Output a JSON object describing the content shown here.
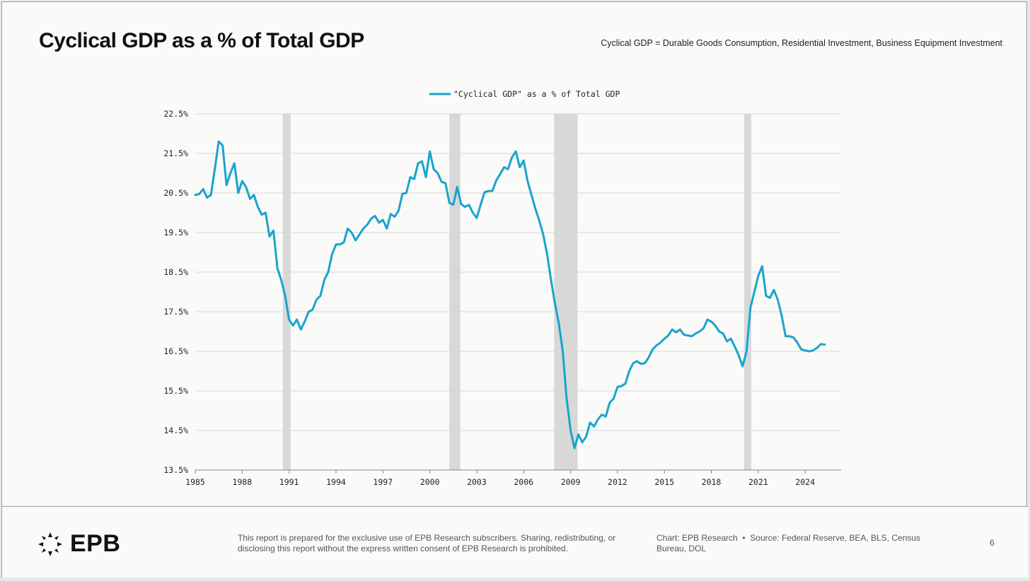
{
  "page": {
    "title": "Cyclical GDP as a % of Total GDP",
    "subtitle": "Cyclical GDP = Durable Goods Consumption, Residential Investment, Business Equipment Investment"
  },
  "footer": {
    "logo_text": "EPB",
    "disclaimer": "This report is prepared for the exclusive use of EPB Research subscribers. Sharing, redistributing, or disclosing this report without the express written consent of EPB Research is prohibited.",
    "credit": "Chart: EPB Research",
    "separator": "•",
    "source": "Source: Federal Reserve, BEA, BLS, Census Bureau, DOL",
    "page_number": "6"
  },
  "chart_data": {
    "type": "line",
    "xlim": [
      1985,
      2026.3
    ],
    "ylim": [
      13.5,
      22.5
    ],
    "x_ticks": [
      1985,
      1988,
      1991,
      1994,
      1997,
      2000,
      2003,
      2006,
      2009,
      2012,
      2015,
      2018,
      2021,
      2024
    ],
    "x_tick_labels": [
      "1985",
      "1988",
      "1991",
      "1994",
      "1997",
      "2000",
      "2003",
      "2006",
      "2009",
      "2012",
      "2015",
      "2018",
      "2021",
      "2024"
    ],
    "y_ticks": [
      13.5,
      14.5,
      15.5,
      16.5,
      17.5,
      18.5,
      19.5,
      20.5,
      21.5,
      22.5
    ],
    "y_tick_labels": [
      "13.5%",
      "14.5%",
      "15.5%",
      "16.5%",
      "17.5%",
      "18.5%",
      "19.5%",
      "20.5%",
      "21.5%",
      "22.5%"
    ],
    "grid": true,
    "legend_position": "top-center",
    "recessions": [
      [
        1990.6,
        1991.1
      ],
      [
        2001.25,
        2001.95
      ],
      [
        2007.95,
        2009.45
      ],
      [
        2020.1,
        2020.55
      ]
    ],
    "colors": {
      "line": "#19a3cf",
      "recession": "#d8d8d8",
      "grid": "#d6d6d6",
      "axis": "#888888"
    },
    "series": [
      {
        "name": "\"Cyclical GDP\" as a % of Total GDP",
        "x": [
          1985.0,
          1985.25,
          1985.5,
          1985.75,
          1986.0,
          1986.25,
          1986.5,
          1986.75,
          1987.0,
          1987.25,
          1987.5,
          1987.75,
          1988.0,
          1988.25,
          1988.5,
          1988.75,
          1989.0,
          1989.25,
          1989.5,
          1989.75,
          1990.0,
          1990.25,
          1990.5,
          1990.75,
          1991.0,
          1991.25,
          1991.5,
          1991.75,
          1992.0,
          1992.25,
          1992.5,
          1992.75,
          1993.0,
          1993.25,
          1993.5,
          1993.75,
          1994.0,
          1994.25,
          1994.5,
          1994.75,
          1995.0,
          1995.25,
          1995.5,
          1995.75,
          1996.0,
          1996.25,
          1996.5,
          1996.75,
          1997.0,
          1997.25,
          1997.5,
          1997.75,
          1998.0,
          1998.25,
          1998.5,
          1998.75,
          1999.0,
          1999.25,
          1999.5,
          1999.75,
          2000.0,
          2000.25,
          2000.5,
          2000.75,
          2001.0,
          2001.25,
          2001.5,
          2001.75,
          2002.0,
          2002.25,
          2002.5,
          2002.75,
          2003.0,
          2003.25,
          2003.5,
          2003.75,
          2004.0,
          2004.25,
          2004.5,
          2004.75,
          2005.0,
          2005.25,
          2005.5,
          2005.75,
          2006.0,
          2006.25,
          2006.5,
          2006.75,
          2007.0,
          2007.25,
          2007.5,
          2007.75,
          2008.0,
          2008.25,
          2008.5,
          2008.75,
          2009.0,
          2009.25,
          2009.5,
          2009.75,
          2010.0,
          2010.25,
          2010.5,
          2010.75,
          2011.0,
          2011.25,
          2011.5,
          2011.75,
          2012.0,
          2012.25,
          2012.5,
          2012.75,
          2013.0,
          2013.25,
          2013.5,
          2013.75,
          2014.0,
          2014.25,
          2014.5,
          2014.75,
          2015.0,
          2015.25,
          2015.5,
          2015.75,
          2016.0,
          2016.25,
          2016.5,
          2016.75,
          2017.0,
          2017.25,
          2017.5,
          2017.75,
          2018.0,
          2018.25,
          2018.5,
          2018.75,
          2019.0,
          2019.25,
          2019.5,
          2019.75,
          2020.0,
          2020.25,
          2020.5,
          2020.75,
          2021.0,
          2021.25,
          2021.5,
          2021.75,
          2022.0,
          2022.25,
          2022.5,
          2022.75,
          2023.0,
          2023.25,
          2023.5,
          2023.75,
          2024.0,
          2024.25,
          2024.5,
          2024.75,
          2025.0,
          2025.25
        ],
        "values": [
          20.45,
          20.47,
          20.6,
          20.38,
          20.45,
          21.1,
          21.8,
          21.7,
          20.7,
          21.0,
          21.25,
          20.5,
          20.8,
          20.65,
          20.35,
          20.45,
          20.15,
          19.95,
          20.0,
          19.4,
          19.55,
          18.6,
          18.3,
          17.9,
          17.3,
          17.15,
          17.3,
          17.05,
          17.25,
          17.5,
          17.55,
          17.8,
          17.9,
          18.3,
          18.5,
          18.95,
          19.2,
          19.2,
          19.25,
          19.6,
          19.5,
          19.3,
          19.45,
          19.6,
          19.7,
          19.85,
          19.92,
          19.75,
          19.82,
          19.6,
          19.97,
          19.9,
          20.05,
          20.48,
          20.5,
          20.9,
          20.85,
          21.25,
          21.3,
          20.9,
          21.55,
          21.1,
          21.0,
          20.78,
          20.75,
          20.25,
          20.2,
          20.65,
          20.22,
          20.15,
          20.2,
          20.0,
          19.87,
          20.2,
          20.52,
          20.55,
          20.55,
          20.82,
          20.98,
          21.15,
          21.1,
          21.4,
          21.55,
          21.15,
          21.32,
          20.8,
          20.45,
          20.1,
          19.8,
          19.45,
          18.95,
          18.3,
          17.7,
          17.2,
          16.5,
          15.3,
          14.5,
          14.05,
          14.4,
          14.2,
          14.35,
          14.7,
          14.6,
          14.78,
          14.9,
          14.85,
          15.2,
          15.3,
          15.6,
          15.62,
          15.68,
          16.0,
          16.2,
          16.25,
          16.18,
          16.2,
          16.35,
          16.55,
          16.65,
          16.72,
          16.82,
          16.9,
          17.05,
          16.98,
          17.05,
          16.92,
          16.9,
          16.88,
          16.95,
          17.0,
          17.08,
          17.3,
          17.25,
          17.15,
          17.0,
          16.95,
          16.75,
          16.82,
          16.62,
          16.4,
          16.12,
          16.5,
          17.6,
          18.0,
          18.4,
          18.65,
          17.9,
          17.85,
          18.05,
          17.8,
          17.4,
          16.88,
          16.88,
          16.85,
          16.72,
          16.55,
          16.52,
          16.5,
          16.52,
          16.58,
          16.68,
          16.67
        ]
      }
    ]
  }
}
